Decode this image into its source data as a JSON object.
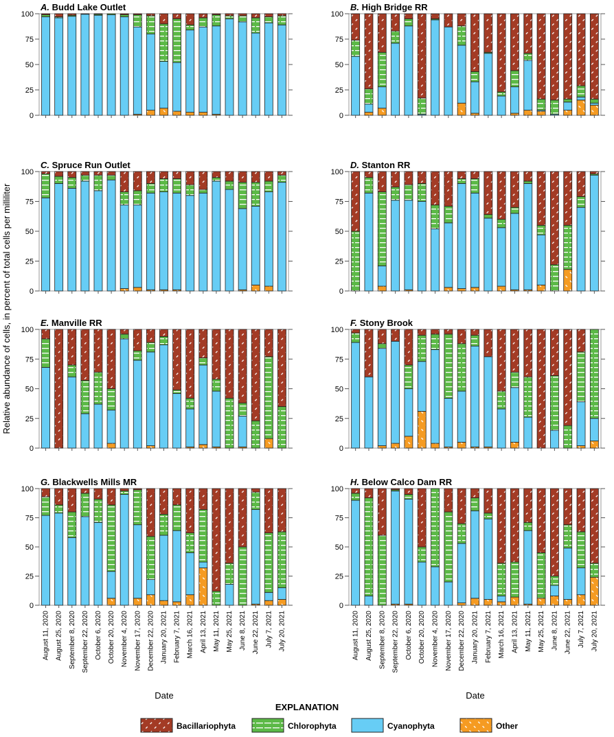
{
  "chart_data": {
    "type": "bar",
    "stacked": true,
    "ylabel": "Relative abundance of cells, in percent of total cells per milliliter",
    "xlabel": "Date",
    "ylim": [
      0,
      100
    ],
    "yticks": [
      "0",
      "25",
      "50",
      "75",
      "100"
    ],
    "categories": [
      "August 11, 2020",
      "August 25, 2020",
      "September 8, 2020",
      "September 22, 2020",
      "October 6, 2020",
      "October 20, 2020",
      "November 4, 2020",
      "November 17, 2020",
      "December 22, 2020",
      "January 20, 2021",
      "February 7, 2021",
      "March 16, 2021",
      "April 13, 2021",
      "May 11, 2021",
      "May 25, 2021",
      "June 8, 2021",
      "June 22, 2021",
      "July 7, 2021",
      "July 20, 2021"
    ],
    "legend": {
      "title": "EXPLANATION",
      "placement": "bottom",
      "entries": [
        "Bacillariophyta",
        "Chlorophyta",
        "Cyanophyta",
        "Other"
      ]
    },
    "series_order_bottom_to_top": [
      "Other",
      "Cyanophyta",
      "Chlorophyta",
      "Bacillariophyta"
    ],
    "colors": {
      "Bacillariophyta": "#a33b25",
      "Chlorophyta": "#5cb947",
      "Cyanophyta": "#67cdf5",
      "Other": "#f59b22"
    },
    "panels": [
      {
        "letter": "A.",
        "title": "Budd Lake Outlet",
        "Other": [
          0,
          0,
          0,
          0,
          0,
          0,
          0,
          1,
          5,
          7,
          4,
          3,
          3,
          1,
          0,
          0,
          0,
          0,
          0
        ],
        "Cyanophyta": [
          97,
          96,
          97.5,
          99.5,
          98.5,
          99,
          97,
          86,
          75,
          46,
          48,
          81,
          84,
          87,
          95,
          92,
          81,
          91,
          89
        ],
        "Chlorophyta": [
          2,
          1,
          1,
          0.5,
          1,
          1,
          2,
          12,
          18,
          37,
          43,
          5,
          9,
          11,
          3,
          6,
          15,
          6,
          9
        ],
        "Bacillariophyta": [
          1,
          3,
          1.5,
          0,
          0.5,
          0,
          1,
          1,
          2,
          10,
          5,
          11,
          4,
          1,
          2,
          2,
          4,
          3,
          2
        ]
      },
      {
        "letter": "B.",
        "title": "High Bridge RR",
        "Other": [
          0,
          3,
          7,
          0,
          0,
          0,
          0,
          0,
          12,
          2,
          0,
          0,
          2,
          5,
          4,
          0,
          5,
          15,
          10
        ],
        "Cyanophyta": [
          58,
          8,
          21,
          71,
          88,
          1,
          94,
          87,
          57,
          31,
          61,
          19,
          26,
          49,
          1,
          1,
          8,
          3,
          2
        ],
        "Chlorophyta": [
          16,
          15,
          34,
          12,
          7,
          16,
          1,
          0,
          19,
          10,
          1,
          4,
          16,
          7,
          11,
          14,
          3,
          11,
          4
        ],
        "Bacillariophyta": [
          26,
          74,
          38,
          17,
          5,
          83,
          5,
          13,
          12,
          57,
          38,
          77,
          56,
          39,
          84,
          85,
          84,
          71,
          84
        ]
      },
      {
        "letter": "C.",
        "title": "Spruce Run Outlet",
        "Other": [
          0,
          0,
          0,
          0,
          0,
          0,
          2,
          3,
          1,
          1,
          1,
          0,
          0,
          0,
          0,
          1,
          5,
          4,
          0
        ],
        "Cyanophyta": [
          78,
          90,
          86,
          92,
          84,
          93,
          70,
          69,
          81,
          82,
          81,
          80,
          82,
          92,
          85,
          68,
          66,
          79,
          91
        ],
        "Chlorophyta": [
          20,
          6,
          9,
          5,
          13,
          4,
          11,
          12,
          8,
          11,
          12,
          9,
          3,
          3,
          7,
          22,
          20,
          9,
          6
        ],
        "Bacillariophyta": [
          2,
          4,
          5,
          3,
          3,
          3,
          17,
          16,
          10,
          6,
          6,
          11,
          15,
          5,
          8,
          9,
          9,
          8,
          3
        ]
      },
      {
        "letter": "D.",
        "title": "Stanton RR",
        "Other": [
          0,
          0,
          4,
          0,
          1,
          0,
          0,
          3,
          2,
          3,
          0,
          4,
          1,
          1,
          5,
          0,
          18,
          0,
          0
        ],
        "Cyanophyta": [
          0,
          82,
          17,
          76,
          75,
          75,
          52,
          54,
          88,
          79,
          61,
          49,
          64,
          89,
          42,
          0,
          0,
          70,
          97
        ],
        "Chlorophyta": [
          50,
          13,
          62,
          11,
          13,
          15,
          20,
          14,
          4,
          12,
          3,
          7,
          5,
          2,
          8,
          22,
          37,
          9,
          1
        ],
        "Bacillariophyta": [
          50,
          5,
          17,
          13,
          11,
          10,
          28,
          29,
          6,
          6,
          36,
          40,
          30,
          8,
          45,
          78,
          45,
          21,
          2
        ]
      },
      {
        "letter": "E.",
        "title": "Manville RR",
        "Other": [
          0,
          0,
          0,
          0,
          0,
          4,
          0,
          0,
          2,
          0,
          0,
          1,
          3,
          1,
          0,
          1,
          0,
          8,
          0
        ],
        "Cyanophyta": [
          68,
          0,
          60,
          29,
          37,
          28,
          92,
          74,
          79,
          87,
          46,
          32,
          67,
          47,
          0,
          26,
          0,
          0,
          0
        ],
        "Chlorophyta": [
          24,
          0,
          10,
          28,
          27,
          18,
          4,
          8,
          8,
          7,
          3,
          9,
          6,
          10,
          42,
          11,
          23,
          69,
          35
        ],
        "Bacillariophyta": [
          8,
          100,
          30,
          43,
          36,
          50,
          4,
          18,
          11,
          6,
          51,
          58,
          24,
          42,
          58,
          62,
          77,
          23,
          65
        ]
      },
      {
        "letter": "F.",
        "title": "Stony Brook",
        "Other": [
          0,
          0,
          2,
          4,
          10,
          31,
          4,
          1,
          5,
          1,
          1,
          0,
          5,
          0,
          0,
          0,
          0,
          2,
          6
        ],
        "Cyanophyta": [
          89,
          60,
          82,
          86,
          40,
          42,
          79,
          41,
          43,
          85,
          76,
          33,
          46,
          26,
          0,
          15,
          0,
          37,
          19
        ],
        "Chlorophyta": [
          8,
          0,
          4,
          0,
          20,
          22,
          13,
          54,
          40,
          9,
          0,
          15,
          13,
          34,
          0,
          46,
          19,
          42,
          75
        ],
        "Bacillariophyta": [
          3,
          40,
          12,
          10,
          30,
          5,
          4,
          4,
          12,
          5,
          23,
          52,
          36,
          40,
          100,
          39,
          81,
          19,
          0
        ]
      },
      {
        "letter": "G.",
        "title": "Blackwells Mills MR",
        "Other": [
          0,
          0,
          0,
          0,
          0,
          6,
          0,
          6,
          9,
          4,
          3,
          9,
          32,
          0,
          0,
          0,
          1,
          4,
          5
        ],
        "Cyanophyta": [
          77,
          79,
          58,
          76,
          71,
          23,
          95,
          63,
          13,
          56,
          61,
          36,
          5,
          0,
          18,
          0,
          81,
          7,
          10
        ],
        "Chlorophyta": [
          16,
          7,
          22,
          20,
          20,
          57,
          3,
          30,
          37,
          18,
          22,
          17,
          45,
          12,
          18,
          50,
          15,
          51,
          48
        ],
        "Bacillariophyta": [
          7,
          14,
          20,
          4,
          9,
          14,
          2,
          1,
          41,
          22,
          14,
          38,
          18,
          88,
          64,
          50,
          3,
          38,
          37
        ]
      },
      {
        "letter": "H.",
        "title": "Below Calco Dam RR",
        "Other": [
          0,
          0,
          0,
          1,
          1,
          0,
          0,
          0,
          2,
          6,
          5,
          3,
          7,
          1,
          6,
          8,
          5,
          9,
          24
        ],
        "Cyanophyta": [
          90,
          8,
          0,
          97,
          90,
          37,
          33,
          20,
          51,
          75,
          69,
          5,
          0,
          63,
          0,
          9,
          44,
          23,
          0
        ],
        "Chlorophyta": [
          6,
          84,
          60,
          1,
          4,
          13,
          67,
          60,
          17,
          11,
          5,
          28,
          30,
          7,
          39,
          8,
          20,
          31,
          12
        ],
        "Bacillariophyta": [
          4,
          8,
          40,
          1,
          5,
          50,
          0,
          20,
          30,
          8,
          21,
          64,
          63,
          29,
          55,
          75,
          31,
          37,
          64
        ]
      }
    ]
  }
}
